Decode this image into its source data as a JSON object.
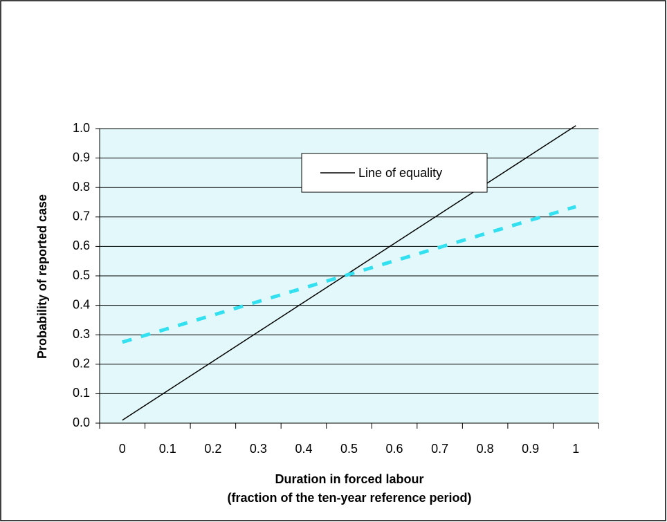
{
  "chart_data": {
    "type": "line",
    "x_label": "Duration in forced labour",
    "x_label_2": "(fraction of the ten-year reference period)",
    "y_label": "Probability of reported case",
    "categories": [
      "0",
      "0.1",
      "0.2",
      "0.3",
      "0.4",
      "0.5",
      "0.6",
      "0.7",
      "0.8",
      "0.9",
      "1"
    ],
    "series": [
      {
        "name": "Line of equality",
        "color": "#000000",
        "dash": false,
        "values": [
          0.01,
          0.11,
          0.21,
          0.31,
          0.41,
          0.51,
          0.61,
          0.71,
          0.81,
          0.91,
          1.01
        ]
      },
      {
        "color": "#33e0f0",
        "dash": true,
        "values": [
          0.275,
          0.321,
          0.367,
          0.413,
          0.459,
          0.505,
          0.551,
          0.597,
          0.643,
          0.689,
          0.735
        ]
      }
    ],
    "ylim": [
      0,
      1
    ],
    "yticks": [
      {
        "value": 0,
        "label": "0.0"
      },
      0.1,
      0.2,
      0.3,
      0.4,
      0.5,
      0.6,
      0.7,
      0.8,
      0.9,
      {
        "value": 1,
        "label": "1.0"
      }
    ],
    "grid": true,
    "plot_background": "#e2f8fa"
  }
}
